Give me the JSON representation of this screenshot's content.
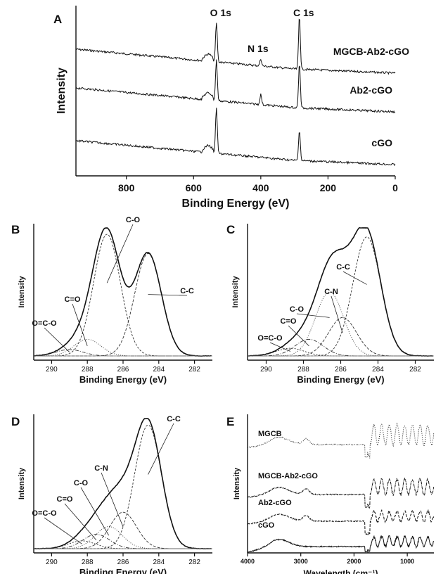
{
  "chart_data": [
    {
      "panel": "A",
      "type": "line",
      "xlabel": "Binding Energy (eV)",
      "ylabel": "Intensity",
      "xlim": [
        950,
        0
      ],
      "xticks": [
        800,
        600,
        400,
        200,
        0
      ],
      "peak_labels": [
        {
          "text": "O 1s",
          "x": 532
        },
        {
          "text": "N 1s",
          "x": 400
        },
        {
          "text": "C 1s",
          "x": 285
        }
      ],
      "series": [
        {
          "name": "MGCB-Ab2-cGO",
          "offset": 2,
          "peaks": [
            {
              "x": 532,
              "h": 0.7
            },
            {
              "x": 400,
              "h": 0.12
            },
            {
              "x": 285,
              "h": 0.95
            }
          ]
        },
        {
          "name": "Ab2-cGO",
          "offset": 1,
          "peaks": [
            {
              "x": 532,
              "h": 0.72
            },
            {
              "x": 400,
              "h": 0.18
            },
            {
              "x": 285,
              "h": 0.8
            }
          ]
        },
        {
          "name": "cGO",
          "offset": 0,
          "peaks": [
            {
              "x": 532,
              "h": 0.8
            },
            {
              "x": 285,
              "h": 0.55
            }
          ]
        }
      ]
    },
    {
      "panel": "B",
      "type": "line",
      "xlabel": "Binding Energy (eV)",
      "ylabel": "Intensity",
      "xlim": [
        291,
        281
      ],
      "xticks": [
        290,
        288,
        286,
        284,
        282
      ],
      "components": [
        {
          "label": "C-O",
          "center": 286.9,
          "amp": 0.95
        },
        {
          "label": "C-C",
          "center": 284.6,
          "amp": 0.8
        },
        {
          "label": "C=O",
          "center": 288.0,
          "amp": 0.13
        },
        {
          "label": "O=C-O",
          "center": 289.0,
          "amp": 0.05
        }
      ]
    },
    {
      "panel": "C",
      "type": "line",
      "xlabel": "Binding Energy (eV)",
      "ylabel": "Intensity",
      "xlim": [
        291,
        281
      ],
      "xticks": [
        290,
        288,
        286,
        284,
        282
      ],
      "components": [
        {
          "label": "C-C",
          "center": 284.6,
          "amp": 0.93
        },
        {
          "label": "C-N",
          "center": 285.9,
          "amp": 0.3
        },
        {
          "label": "C-O",
          "center": 286.6,
          "amp": 0.5
        },
        {
          "label": "C=O",
          "center": 287.7,
          "amp": 0.13
        },
        {
          "label": "O=C-O",
          "center": 288.7,
          "amp": 0.06
        }
      ]
    },
    {
      "panel": "D",
      "type": "line",
      "xlabel": "Binding Energy (eV)",
      "ylabel": "Intensity",
      "xlim": [
        291,
        281
      ],
      "xticks": [
        290,
        288,
        286,
        284,
        282
      ],
      "components": [
        {
          "label": "C-C",
          "center": 284.6,
          "amp": 0.95
        },
        {
          "label": "C-N",
          "center": 286.0,
          "amp": 0.28
        },
        {
          "label": "C-O",
          "center": 286.8,
          "amp": 0.17
        },
        {
          "label": "C=O",
          "center": 287.5,
          "amp": 0.11
        },
        {
          "label": "O=C-O",
          "center": 288.3,
          "amp": 0.06
        }
      ]
    },
    {
      "panel": "E",
      "type": "line",
      "xlabel": "Wavelength (cm⁻¹)",
      "ylabel": "Intensity",
      "xlim": [
        4000,
        500
      ],
      "xticks": [
        4000,
        3000,
        2000,
        1000
      ],
      "series": [
        {
          "name": "MGCB",
          "offset": 3
        },
        {
          "name": "MGCB-Ab2-cGO",
          "offset": 2
        },
        {
          "name": "Ab2-cGO",
          "offset": 1
        },
        {
          "name": "cGO",
          "offset": 0
        }
      ]
    }
  ]
}
